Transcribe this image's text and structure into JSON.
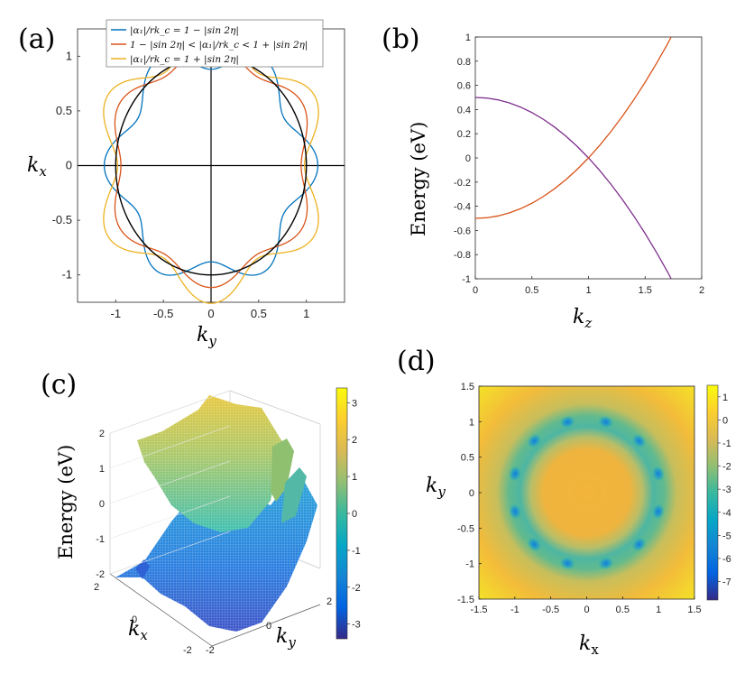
{
  "panels": {
    "a": "(a)",
    "b": "(b)",
    "c": "(c)",
    "d": "(d)"
  },
  "chart_data": [
    {
      "id": "a",
      "type": "line",
      "xlabel": "k_y",
      "ylabel": "k_x",
      "xlabel_main": "k",
      "xlabel_sub": "y",
      "ylabel_main": "k",
      "ylabel_sub": "x",
      "xlim": [
        -1.4,
        1.4
      ],
      "ylim": [
        -1.25,
        1.25
      ],
      "xticks": [
        -1,
        -0.5,
        0,
        0.5,
        1
      ],
      "yticks": [
        -1,
        -0.5,
        0,
        0.5,
        1
      ],
      "xtick_labels": [
        "-1",
        "-0.5",
        "0",
        "0.5",
        "1"
      ],
      "ytick_labels": [
        "-1",
        "-0.5",
        "0",
        "0.5",
        "1"
      ],
      "legend_position": "top",
      "series": [
        {
          "name": "|α₁|/rk_c = 1 − |sin 2η|",
          "color": "#0072BD",
          "base": 1.0,
          "amplitude": -0.12
        },
        {
          "name": "1 − |sin 2η| < |α₁|/rk_c < 1 + |sin 2η|",
          "color": "#D95319",
          "base": 1.03,
          "amplitude": 0.085
        },
        {
          "name": "|α₁|/rk_c = 1 + |sin 2η|",
          "color": "#EDB120",
          "base": 1.12,
          "amplitude": 0.14
        },
        {
          "name": "unit circle",
          "color": "#000000",
          "base": 1.0,
          "amplitude": 0
        }
      ]
    },
    {
      "id": "b",
      "type": "line",
      "xlabel": "k_z",
      "ylabel": "Energy (eV)",
      "xlabel_main": "k",
      "xlabel_sub": "z",
      "xlim": [
        0,
        2
      ],
      "ylim": [
        -1,
        1
      ],
      "xticks": [
        0,
        0.5,
        1,
        1.5,
        2
      ],
      "yticks": [
        -1,
        -0.8,
        -0.6,
        -0.4,
        -0.2,
        0,
        0.2,
        0.4,
        0.6,
        0.8,
        1
      ],
      "xtick_labels": [
        "0",
        "0.5",
        "1",
        "1.5",
        "2"
      ],
      "ytick_labels": [
        "-1",
        "-0.8",
        "-0.6",
        "-0.4",
        "-0.2",
        "0",
        "0.2",
        "0.4",
        "0.6",
        "0.8",
        "1"
      ],
      "series": [
        {
          "name": "upper band",
          "color": "#7E2F8E",
          "x": [
            0,
            0.1,
            0.2,
            0.3,
            0.4,
            0.5,
            0.6,
            0.7,
            0.8,
            0.9,
            1.0,
            1.1,
            1.2,
            1.3,
            1.4,
            1.5,
            1.6,
            1.7,
            1.73
          ],
          "y": [
            0.5,
            0.495,
            0.48,
            0.455,
            0.42,
            0.375,
            0.32,
            0.255,
            0.18,
            0.095,
            0.0,
            -0.105,
            -0.22,
            -0.345,
            -0.48,
            -0.625,
            -0.78,
            -0.945,
            -1.0
          ]
        },
        {
          "name": "lower band",
          "color": "#D95319",
          "x": [
            0,
            0.1,
            0.2,
            0.3,
            0.4,
            0.5,
            0.6,
            0.7,
            0.8,
            0.9,
            1.0,
            1.1,
            1.2,
            1.3,
            1.4,
            1.5,
            1.6,
            1.7,
            1.73
          ],
          "y": [
            -0.5,
            -0.495,
            -0.48,
            -0.455,
            -0.42,
            -0.375,
            -0.32,
            -0.255,
            -0.18,
            -0.095,
            0.0,
            0.105,
            0.22,
            0.345,
            0.48,
            0.625,
            0.78,
            0.945,
            1.0
          ]
        }
      ]
    },
    {
      "id": "c",
      "type": "surface",
      "zlabel": "Energy (eV)",
      "xlabel": "k_x",
      "ylabel": "k_y",
      "xlabel_main": "k",
      "xlabel_sub": "x",
      "ylabel_main": "k",
      "ylabel_sub": "y",
      "zticks": [
        -2,
        -1,
        0,
        1,
        2
      ],
      "ztick_labels": [
        "-2",
        "-1",
        "0",
        "1",
        "2"
      ],
      "xtick_labels": [
        "2",
        "0",
        "-2"
      ],
      "ytick_labels": [
        "-2",
        "0",
        "2"
      ],
      "colorbar": {
        "range": [
          -3.4,
          3.4
        ],
        "ticks": [
          -3,
          -2,
          -1,
          0,
          1,
          2,
          3
        ],
        "tick_labels": [
          "-3",
          "-2",
          "-1",
          "0",
          "1",
          "2",
          "3"
        ]
      }
    },
    {
      "id": "d",
      "type": "heatmap",
      "xlabel": "k_x",
      "ylabel": "k_y",
      "xlabel_main": "k",
      "xlabel_sub": "x",
      "ylabel_main": "k",
      "ylabel_sub": "y",
      "xlim": [
        -1.5,
        1.5
      ],
      "ylim": [
        -1.5,
        1.5
      ],
      "xticks": [
        -1.5,
        -1,
        -0.5,
        0,
        0.5,
        1,
        1.5
      ],
      "yticks": [
        -1.5,
        -1,
        -0.5,
        0,
        0.5,
        1,
        1.5
      ],
      "xtick_labels": [
        "-1.5",
        "-1",
        "-0.5",
        "0",
        "0.5",
        "1",
        "1.5"
      ],
      "ytick_labels": [
        "-1.5",
        "-1",
        "-0.5",
        "0",
        "0.5",
        "1",
        "1.5"
      ],
      "colorbar": {
        "range": [
          -7.8,
          1.5
        ],
        "ticks": [
          1,
          0,
          -1,
          -2,
          -3,
          -4,
          -5,
          -6,
          -7
        ],
        "tick_labels": [
          "1",
          "0",
          "-1",
          "-2",
          "-3",
          "-4",
          "-5",
          "-6",
          "-7"
        ]
      }
    }
  ]
}
